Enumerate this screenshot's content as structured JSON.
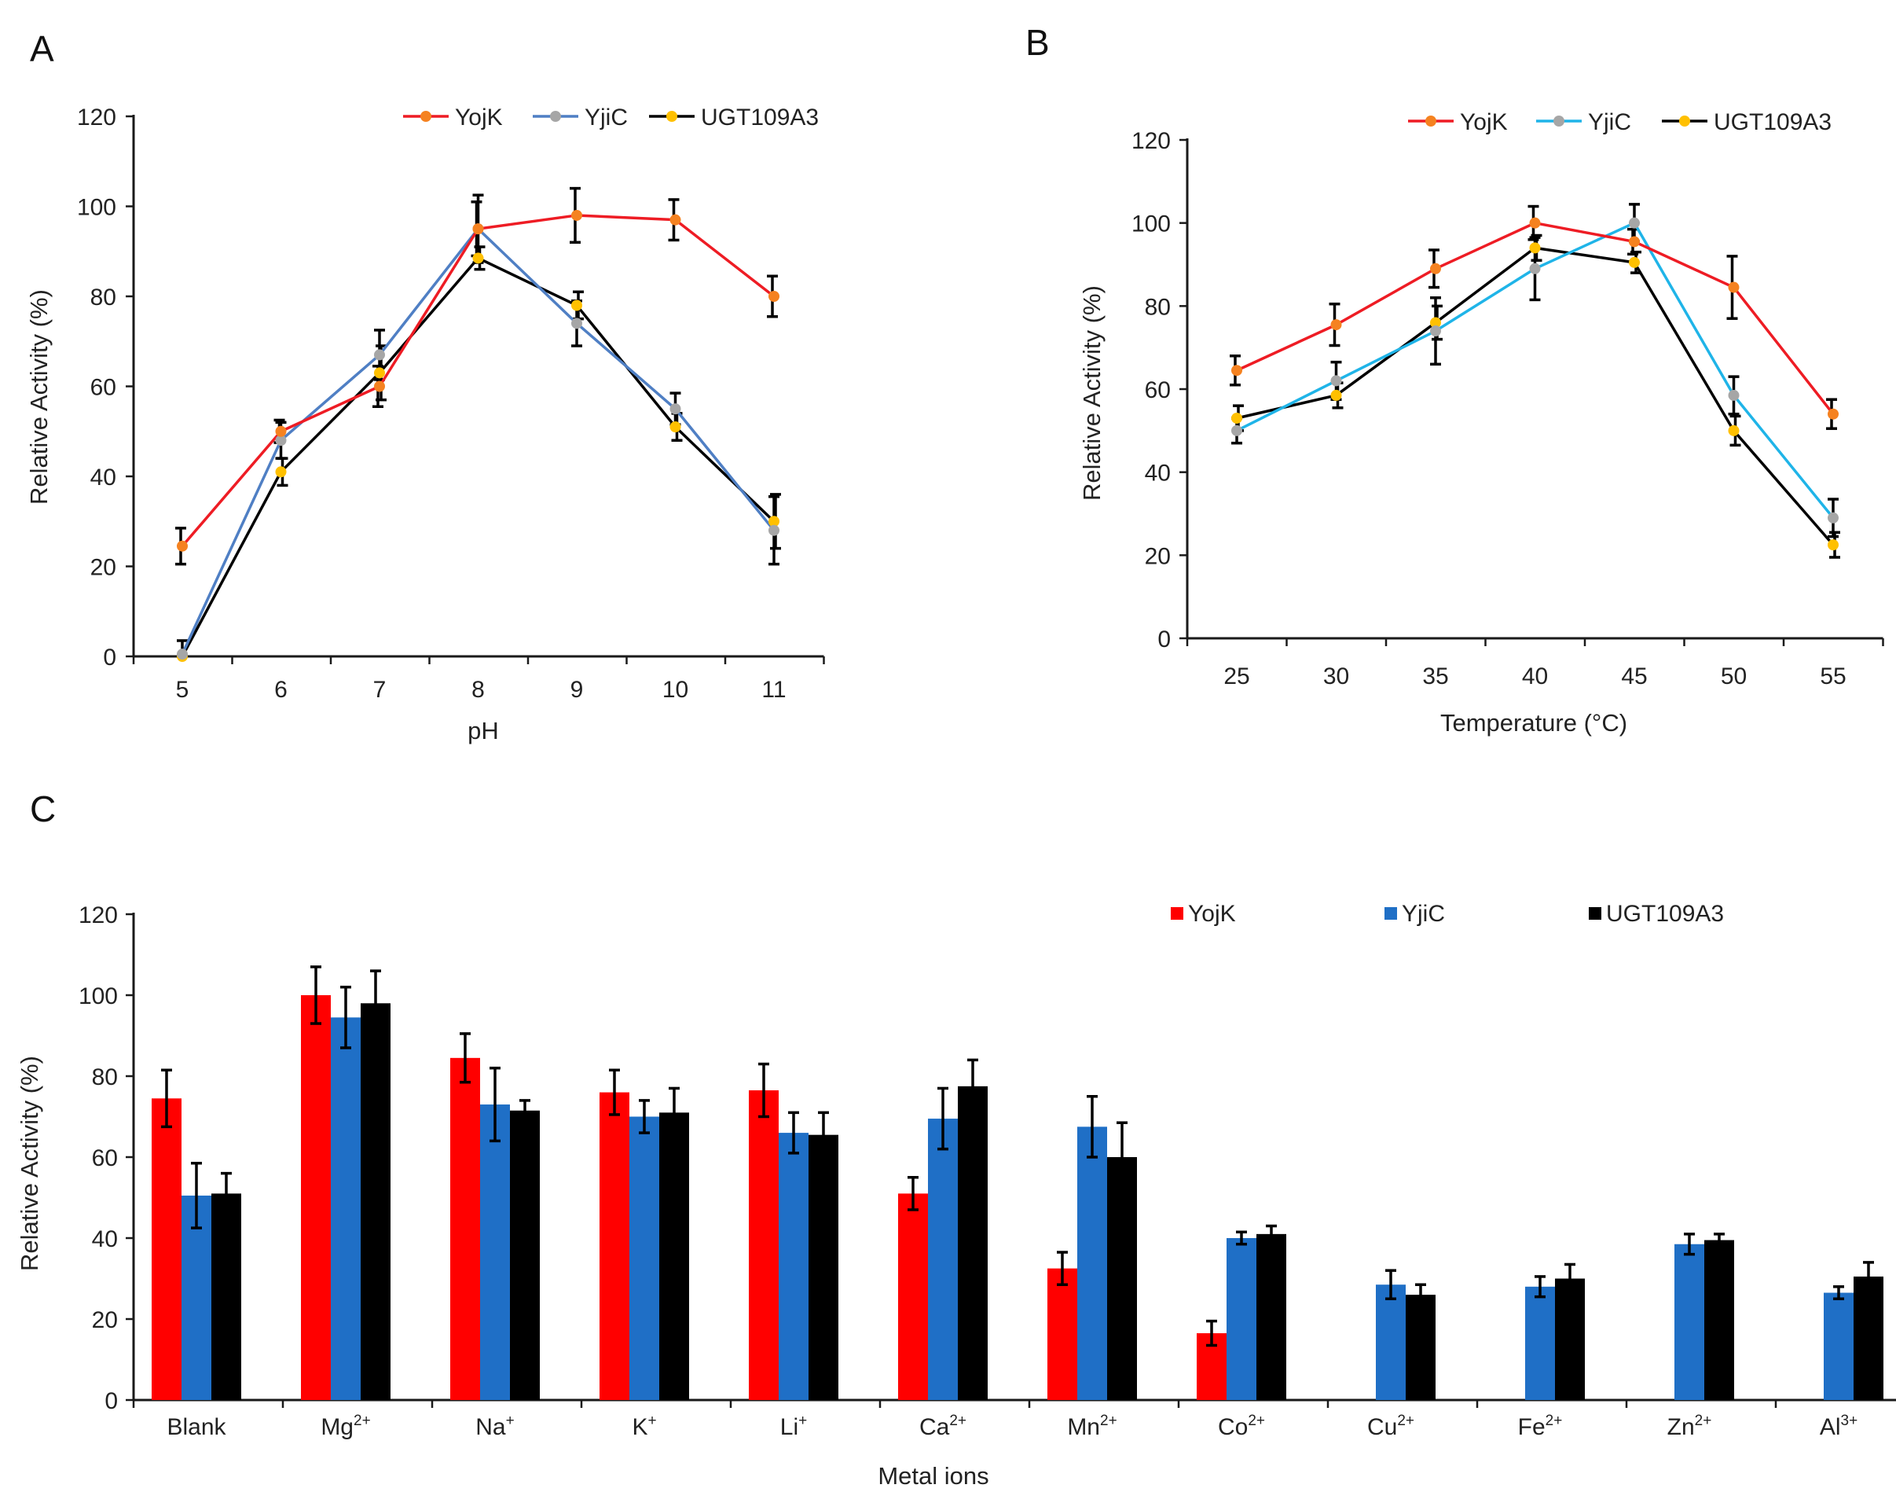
{
  "colors": {
    "yojk": "#ee1c24",
    "yjic_a": "#4f7fc4",
    "yjic_b": "#1fb4e8",
    "yjic_marker": "#a6a6a6",
    "ugt": "#000000",
    "ugt_marker": "#ffc000",
    "yojk_marker": "#f58220",
    "bar_yojk": "#ff0000",
    "bar_yjic": "#1f6fc6",
    "bar_ugt": "#000000"
  },
  "chart_data": [
    {
      "id": "A",
      "type": "line",
      "panel_label": "A",
      "xlabel": "pH",
      "ylabel": "Relative Activity (%)",
      "categories": [
        "5",
        "6",
        "7",
        "8",
        "9",
        "10",
        "11"
      ],
      "ylim": [
        0,
        120
      ],
      "yticks": [
        "0",
        "20",
        "40",
        "60",
        "80",
        "100",
        "120"
      ],
      "legend_position": "top-right",
      "series": [
        {
          "name": "YojK",
          "values": [
            24.5,
            50,
            60,
            95,
            98,
            97,
            80
          ],
          "errors": [
            4,
            2.5,
            4.5,
            6,
            6,
            4.5,
            4.5
          ]
        },
        {
          "name": "YjiC",
          "values": [
            0.5,
            48,
            67,
            95,
            74,
            55,
            28
          ],
          "errors": [
            3,
            4,
            5.5,
            7.5,
            5,
            3.5,
            7.5
          ]
        },
        {
          "name": "UGT109A3",
          "values": [
            0,
            41,
            63,
            88.5,
            78,
            51,
            30
          ],
          "errors": [
            0,
            3,
            6,
            2.5,
            3,
            3,
            6
          ]
        }
      ]
    },
    {
      "id": "B",
      "type": "line",
      "panel_label": "B",
      "xlabel": "Temperature (°C)",
      "ylabel": "Relative Activity (%)",
      "categories": [
        "25",
        "30",
        "35",
        "40",
        "45",
        "50",
        "55"
      ],
      "ylim": [
        0,
        120
      ],
      "yticks": [
        "0",
        "20",
        "40",
        "60",
        "80",
        "100",
        "120"
      ],
      "legend_position": "top-right",
      "series": [
        {
          "name": "YojK",
          "values": [
            64.5,
            75.5,
            89,
            100,
            95.5,
            84.5,
            54
          ],
          "errors": [
            3.5,
            5,
            4.5,
            4,
            3,
            7.5,
            3.5
          ]
        },
        {
          "name": "YjiC",
          "values": [
            50,
            62,
            74,
            89,
            100,
            58.5,
            29
          ],
          "errors": [
            3,
            4.5,
            8,
            7.5,
            4.5,
            4.5,
            4.5
          ]
        },
        {
          "name": "UGT109A3",
          "values": [
            53,
            58.5,
            76,
            94,
            90.5,
            50,
            22.5
          ],
          "errors": [
            3,
            3,
            4,
            3,
            2.5,
            3.5,
            3
          ]
        }
      ]
    },
    {
      "id": "C",
      "type": "bar",
      "panel_label": "C",
      "xlabel": "Metal ions",
      "ylabel": "Relative Activity (%)",
      "categories": [
        {
          "base": "Blank",
          "sup": ""
        },
        {
          "base": "Mg",
          "sup": "2+"
        },
        {
          "base": "Na",
          "sup": "+"
        },
        {
          "base": "K",
          "sup": "+"
        },
        {
          "base": "Li",
          "sup": "+"
        },
        {
          "base": "Ca",
          "sup": "2+"
        },
        {
          "base": "Mn",
          "sup": "2+"
        },
        {
          "base": "Co",
          "sup": "2+"
        },
        {
          "base": "Cu",
          "sup": "2+"
        },
        {
          "base": "Fe",
          "sup": "2+"
        },
        {
          "base": "Zn",
          "sup": "2+"
        },
        {
          "base": "Al",
          "sup": "3+"
        }
      ],
      "ylim": [
        0,
        120
      ],
      "yticks": [
        "0",
        "20",
        "40",
        "60",
        "80",
        "100",
        "120"
      ],
      "legend_position": "top-right",
      "series": [
        {
          "name": "YojK",
          "values": [
            74.5,
            100,
            84.5,
            76,
            76.5,
            51,
            32.5,
            16.5,
            null,
            null,
            null,
            null
          ],
          "errors": [
            7,
            7,
            6,
            5.5,
            6.5,
            4,
            4,
            3,
            null,
            null,
            null,
            null
          ]
        },
        {
          "name": "YjiC",
          "values": [
            50.5,
            94.5,
            73,
            70,
            66,
            69.5,
            67.5,
            40,
            28.5,
            28,
            38.5,
            26.5
          ],
          "errors": [
            8,
            7.5,
            9,
            4,
            5,
            7.5,
            7.5,
            1.5,
            3.5,
            2.5,
            2.5,
            1.5
          ]
        },
        {
          "name": "UGT109A3",
          "values": [
            51,
            98,
            71.5,
            71,
            65.5,
            77.5,
            60,
            41,
            26,
            30,
            39.5,
            30.5
          ],
          "errors": [
            5,
            8,
            2.5,
            6,
            5.5,
            6.5,
            8.5,
            2,
            2.5,
            3.5,
            1.5,
            3.5
          ]
        }
      ]
    }
  ]
}
